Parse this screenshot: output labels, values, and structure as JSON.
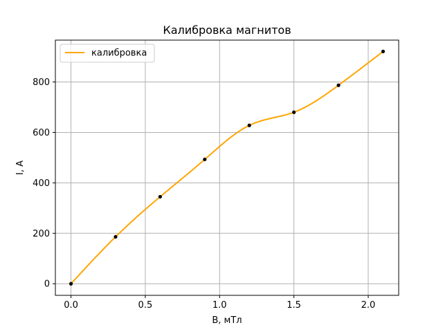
{
  "chart_data": {
    "type": "line",
    "title": "Калибровка магнитов",
    "xlabel": "B, мТл",
    "ylabel": "I, A",
    "xlim": [
      -0.105,
      2.205
    ],
    "ylim": [
      -46,
      966
    ],
    "xticks": [
      0.0,
      0.5,
      1.0,
      1.5,
      2.0
    ],
    "xtick_labels": [
      "0.0",
      "0.5",
      "1.0",
      "1.5",
      "2.0"
    ],
    "yticks": [
      0,
      200,
      400,
      600,
      800
    ],
    "ytick_labels": [
      "0",
      "200",
      "400",
      "600",
      "800"
    ],
    "grid": true,
    "legend_position": "top-left",
    "series": [
      {
        "name": "калибровка",
        "color": "#ffa500",
        "x": [
          0.0,
          0.3,
          0.6,
          0.9,
          1.2,
          1.5,
          1.8,
          2.1
        ],
        "y": [
          0,
          186,
          345,
          493,
          628,
          680,
          787,
          921
        ],
        "point_color": "#000000"
      }
    ]
  }
}
